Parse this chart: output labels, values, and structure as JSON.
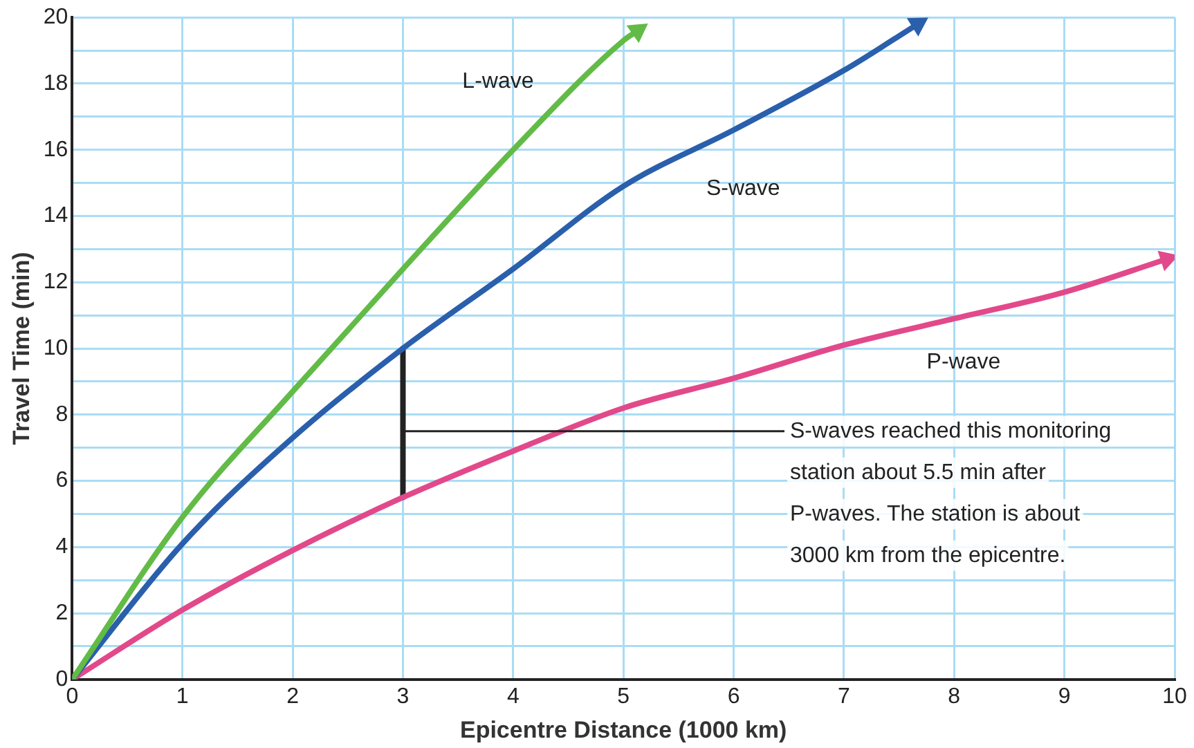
{
  "chart_data": {
    "type": "line",
    "xlabel": "Epicentre Distance (1000 km)",
    "ylabel": "Travel Time (min)",
    "xlim": [
      0,
      10
    ],
    "xticks": [
      0,
      1,
      2,
      3,
      4,
      5,
      6,
      7,
      8,
      9,
      10
    ],
    "ylim": [
      0,
      20
    ],
    "yticks": [
      0,
      {
        "value": 1,
        "label": null
      },
      2,
      {
        "value": 3,
        "label": null
      },
      4,
      {
        "value": 5,
        "label": null
      },
      6,
      {
        "value": 7,
        "label": null
      },
      8,
      {
        "value": 9,
        "label": null
      },
      10,
      {
        "value": 11,
        "label": null
      },
      12,
      {
        "value": 13,
        "label": null
      },
      14,
      {
        "value": 15,
        "label": null
      },
      16,
      {
        "value": 17,
        "label": null
      },
      18,
      {
        "value": 19,
        "label": null
      },
      20
    ],
    "grid": true,
    "legend": false,
    "marker": "none",
    "line_style": "solid",
    "series": [
      {
        "name": "L-wave",
        "color": "#62bb46",
        "x": [
          0,
          1,
          2,
          3,
          4,
          5,
          5.13
        ],
        "values": [
          0,
          4.9,
          8.7,
          12.4,
          16.0,
          19.3,
          19.6
        ]
      },
      {
        "name": "S-wave",
        "color": "#2a5fac",
        "x": [
          0,
          1,
          2,
          3,
          4,
          5,
          6,
          7,
          7.67
        ],
        "values": [
          0,
          4.1,
          7.3,
          10.0,
          12.4,
          14.9,
          16.6,
          18.4,
          19.8
        ]
      },
      {
        "name": "P-wave",
        "color": "#e2498a",
        "x": [
          0,
          1,
          2,
          3,
          4,
          5,
          6,
          7,
          8,
          9,
          9.93
        ],
        "values": [
          0,
          2.1,
          3.9,
          5.5,
          6.9,
          8.2,
          9.1,
          10.1,
          10.9,
          11.7,
          12.7
        ]
      },
      {
        "color": "#222222",
        "x": [
          3,
          3
        ],
        "values": [
          5.5,
          10.0
        ]
      }
    ],
    "annotations": [
      {
        "text": "S-waves reached this monitoring station about 5.5 min after P-waves. The station is about 3000 km from the epicentre.",
        "x": 3,
        "y": 7.5
      }
    ]
  }
}
